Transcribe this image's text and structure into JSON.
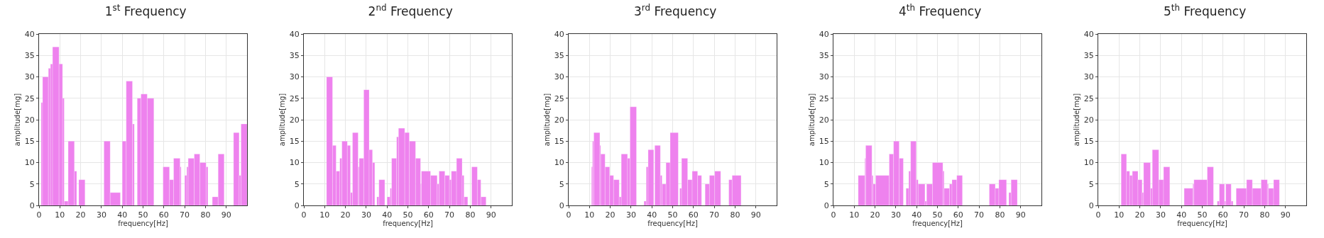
{
  "chart_data": [
    {
      "type": "histogram",
      "title": "1$^{st}$ Frequency",
      "xlabel": "frequency[Hz]",
      "ylabel": "amplitude[mg]",
      "color": "#ee82ee",
      "xlim": [
        0,
        100
      ],
      "xticks": [
        0,
        10,
        20,
        30,
        40,
        50,
        60,
        70,
        80,
        90
      ],
      "ylim": [
        0,
        40
      ],
      "yticks": [
        0,
        5,
        10,
        15,
        20,
        25,
        30,
        35,
        40
      ],
      "grid": true,
      "bins": [
        1.0,
        1.7,
        4.5,
        5.5,
        6.5,
        9.6,
        11.3,
        12.1,
        14.0,
        17.0,
        18.1,
        19.1,
        22.1,
        31.2,
        34.2,
        39.1,
        40.0,
        41.9,
        44.9,
        45.8,
        47.2,
        49.0,
        52.0,
        55.2,
        59.6,
        62.7,
        64.7,
        67.8,
        68.3,
        70.0,
        71.0,
        71.7,
        74.6,
        77.3,
        80.3,
        81.2,
        83.3,
        86.1,
        89.0,
        93.5,
        96.2,
        97.1,
        100
      ],
      "values": [
        24,
        30,
        32,
        33,
        37,
        33,
        25,
        1,
        15,
        8,
        0,
        6,
        0,
        15,
        3,
        0,
        15,
        29,
        19,
        0,
        25,
        26,
        25,
        0,
        9,
        6,
        11,
        9,
        0,
        7,
        9,
        11,
        12,
        10,
        9,
        0,
        2,
        12,
        0,
        17,
        7,
        19
      ]
    },
    {
      "type": "histogram",
      "title": "2$^{nd}$ Frequency",
      "xlabel": "frequency[Hz]",
      "ylabel": "amplitude[mg]",
      "color": "#ee82ee",
      "xlim": [
        0,
        100
      ],
      "xticks": [
        0,
        10,
        20,
        30,
        40,
        50,
        60,
        70,
        80,
        90
      ],
      "ylim": [
        0,
        40
      ],
      "yticks": [
        0,
        5,
        10,
        15,
        20,
        25,
        30,
        35,
        40
      ],
      "grid": true,
      "bins": [
        10.9,
        13.8,
        15.5,
        17.3,
        18.3,
        20.9,
        22.4,
        23.4,
        26.1,
        26.6,
        28.8,
        31.4,
        33.0,
        34.1,
        35.1,
        36.1,
        38.9,
        40.0,
        41.5,
        42.2,
        44.6,
        45.5,
        48.5,
        50.7,
        53.7,
        56.1,
        56.5,
        60.9,
        64.1,
        65.0,
        67.8,
        70.0,
        70.9,
        73.4,
        76.1,
        77.0,
        78.8,
        80.7,
        83.4,
        85.1,
        87.6
      ],
      "values": [
        30,
        14,
        8,
        11,
        15,
        14,
        3,
        17,
        9,
        11,
        27,
        13,
        10,
        0,
        2,
        6,
        0,
        2,
        4,
        11,
        16,
        18,
        17,
        15,
        11,
        5,
        8,
        7,
        5,
        8,
        7,
        6,
        8,
        11,
        7,
        2,
        0,
        9,
        6,
        2
      ]
    },
    {
      "type": "histogram",
      "title": "3$^{rd}$ Frequency",
      "xlabel": "frequency[Hz]",
      "ylabel": "amplitude[mg]",
      "color": "#ee82ee",
      "xlim": [
        0,
        100
      ],
      "xticks": [
        0,
        10,
        20,
        30,
        40,
        50,
        60,
        70,
        80,
        90
      ],
      "ylim": [
        0,
        40
      ],
      "yticks": [
        0,
        5,
        10,
        15,
        20,
        25,
        30,
        35,
        40
      ],
      "grid": true,
      "bins": [
        11.0,
        11.5,
        12.1,
        15.0,
        15.4,
        17.5,
        19.7,
        21.6,
        24.3,
        25.3,
        28.3,
        29.5,
        32.6,
        36.2,
        37.3,
        38.2,
        40.9,
        41.4,
        44.1,
        44.9,
        46.8,
        48.8,
        52.7,
        53.4,
        54.3,
        57.2,
        59.4,
        62.0,
        63.9,
        65.6,
        67.7,
        70.2,
        73.1,
        77.0,
        78.6,
        82.9
      ],
      "values": [
        9,
        15,
        17,
        14,
        12,
        9,
        7,
        6,
        2,
        12,
        11,
        23,
        0,
        1,
        9,
        13,
        0,
        14,
        7,
        5,
        10,
        17,
        0,
        4,
        11,
        6,
        8,
        7,
        0,
        5,
        7,
        8,
        0,
        6,
        7
      ]
    },
    {
      "type": "histogram",
      "title": "4$^{th}$ Frequency",
      "xlabel": "frequency[Hz]",
      "ylabel": "amplitude[mg]",
      "color": "#ee82ee",
      "xlim": [
        0,
        100
      ],
      "xticks": [
        0,
        10,
        20,
        30,
        40,
        50,
        60,
        70,
        80,
        90
      ],
      "ylim": [
        0,
        40
      ],
      "yticks": [
        0,
        5,
        10,
        15,
        20,
        25,
        30,
        35,
        40
      ],
      "grid": true,
      "bins": [
        11.9,
        15.1,
        15.5,
        18.5,
        19.1,
        20.3,
        26.8,
        28.9,
        31.6,
        33.6,
        34.9,
        36.2,
        37.1,
        39.8,
        40.7,
        44.0,
        44.8,
        47.6,
        52.6,
        53.2,
        55.8,
        57.0,
        59.3,
        62.0,
        74.9,
        77.8,
        79.5,
        83.2,
        84.3,
        85.4,
        88.4
      ],
      "values": [
        7,
        11,
        14,
        7,
        5,
        7,
        12,
        15,
        11,
        0,
        4,
        8,
        15,
        6,
        5,
        1,
        5,
        10,
        8,
        4,
        5,
        6,
        7,
        0,
        5,
        4,
        6,
        0,
        3,
        6
      ]
    },
    {
      "type": "histogram",
      "title": "5$^{th}$ Frequency",
      "xlabel": "frequency[Hz]",
      "ylabel": "amplitude[mg]",
      "color": "#ee82ee",
      "xlim": [
        0,
        100
      ],
      "xticks": [
        0,
        10,
        20,
        30,
        40,
        50,
        60,
        70,
        80,
        90
      ],
      "ylim": [
        0,
        40
      ],
      "yticks": [
        0,
        5,
        10,
        15,
        20,
        25,
        30,
        35,
        40
      ],
      "grid": true,
      "bins": [
        11.0,
        13.6,
        15.1,
        16.4,
        19.1,
        21.1,
        21.8,
        25.1,
        26.0,
        29.1,
        31.4,
        34.4,
        41.3,
        45.5,
        46.0,
        52.4,
        55.4,
        57.2,
        58.2,
        60.7,
        61.3,
        63.9,
        64.8,
        66.3,
        71.3,
        74.1,
        78.3,
        81.3,
        81.8,
        84.3,
        87.1
      ],
      "values": [
        12,
        8,
        7,
        8,
        6,
        3,
        10,
        4,
        13,
        6,
        9,
        0,
        4,
        5,
        6,
        9,
        0,
        1,
        5,
        1,
        5,
        1,
        0,
        4,
        6,
        4,
        6,
        5,
        4,
        6
      ]
    }
  ]
}
